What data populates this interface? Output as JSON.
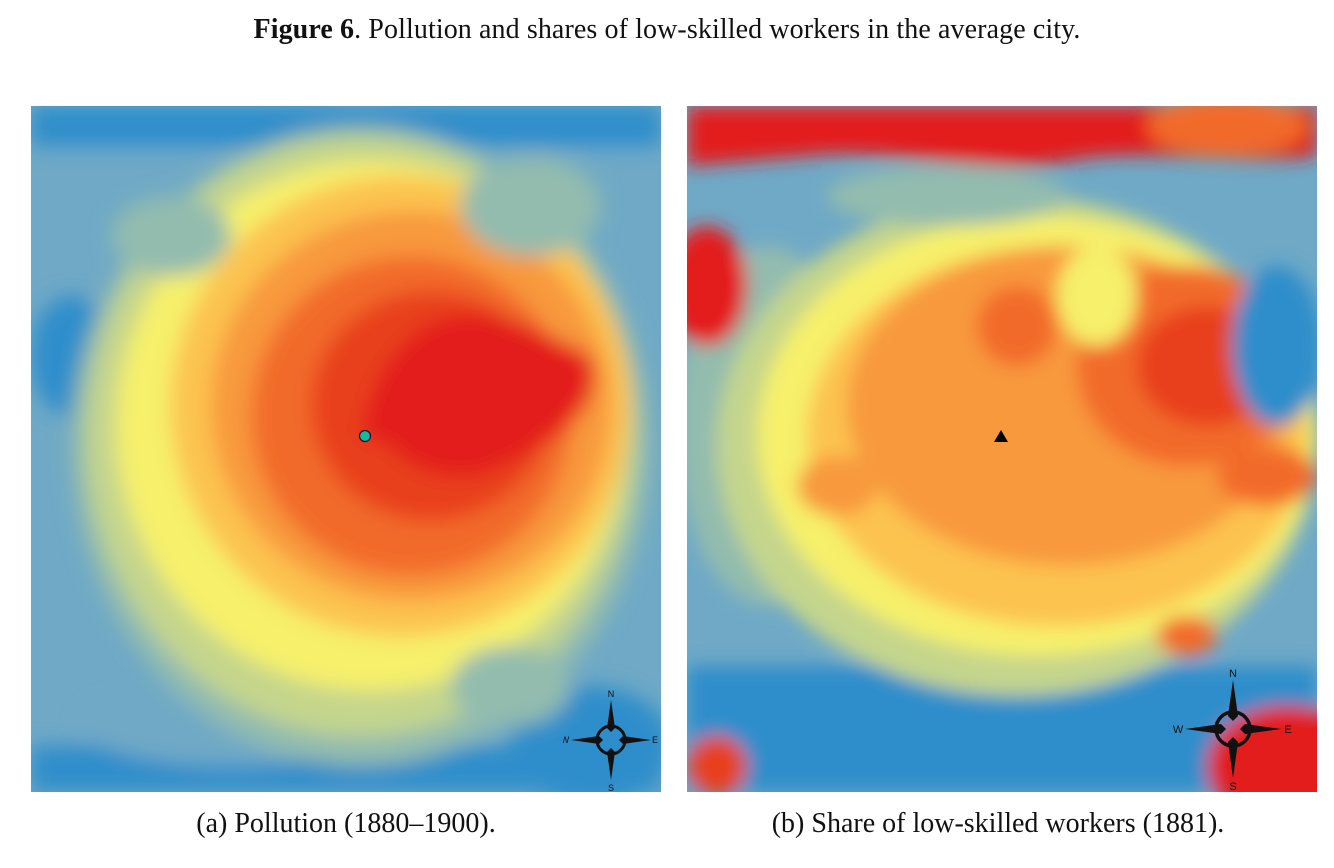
{
  "figure": {
    "label": "Figure 6",
    "rest": ". Pollution and shares of low-skilled workers in the average city."
  },
  "palette": {
    "blue": "#2e8ecb",
    "light_blue": "#6fa9c6",
    "teal": "#93bcae",
    "pale_green": "#c4d58c",
    "yellow": "#f6f06a",
    "light_orange": "#fcc34f",
    "orange": "#f8993c",
    "dark_orange": "#f26a2c",
    "red": "#e31a1c"
  },
  "panels": [
    {
      "caption": "(a) Pollution (1880–1900).",
      "marker": "circle",
      "marker_color": "#19b89b",
      "compass": {
        "n": "N",
        "s": "S",
        "e": "E",
        "w": "W"
      }
    },
    {
      "caption": "(b) Share of low-skilled workers (1881).",
      "marker": "triangle",
      "marker_color": "#000000",
      "compass": {
        "n": "N",
        "s": "S",
        "e": "E",
        "w": "W"
      }
    }
  ]
}
